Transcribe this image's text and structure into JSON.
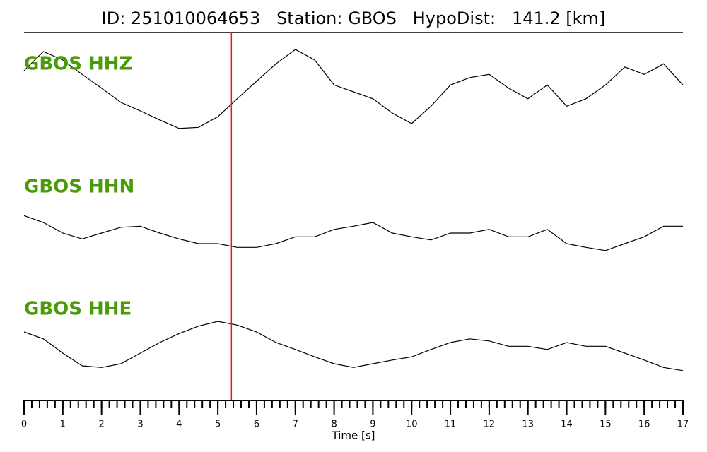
{
  "chart_data": {
    "type": "line",
    "title": "ID: 251010064653   Station: GBOS   HypoDist:   141.2 [km]",
    "xlabel": "Time [s]",
    "x": [
      0,
      0.5,
      1,
      1.5,
      2,
      2.5,
      3,
      3.5,
      4,
      4.5,
      5,
      5.5,
      6,
      6.5,
      7,
      7.5,
      8,
      8.5,
      9,
      9.5,
      10,
      10.5,
      11,
      11.5,
      12,
      12.5,
      13,
      13.5,
      14,
      14.5,
      15,
      15.5,
      16,
      16.5,
      17
    ],
    "xlim": [
      0,
      17
    ],
    "xticks": [
      0,
      1,
      2,
      3,
      4,
      5,
      6,
      7,
      8,
      9,
      10,
      11,
      12,
      13,
      14,
      15,
      16,
      17
    ],
    "xminor": 0.2,
    "ylim": [
      -1,
      1
    ],
    "pick_time": 5.35,
    "pick_color": "#e02020",
    "label_color": "#4a9a0a",
    "series": [
      {
        "name": "GBOS HHZ",
        "color": "#000000",
        "values": [
          0.4,
          0.76,
          0.6,
          0.33,
          0.07,
          -0.2,
          -0.36,
          -0.53,
          -0.69,
          -0.67,
          -0.47,
          -0.13,
          0.2,
          0.53,
          0.8,
          0.6,
          0.13,
          0,
          -0.13,
          -0.4,
          -0.6,
          -0.27,
          0.13,
          0.27,
          0.33,
          0.07,
          -0.13,
          0.13,
          -0.27,
          -0.13,
          0.13,
          0.47,
          0.33,
          0.53,
          0.13
        ]
      },
      {
        "name": "GBOS HHN",
        "color": "#000000",
        "values": [
          0.33,
          0.2,
          0,
          -0.11,
          0,
          0.11,
          0.13,
          0,
          -0.11,
          -0.2,
          -0.2,
          -0.27,
          -0.27,
          -0.2,
          -0.07,
          -0.07,
          0.07,
          0.13,
          0.2,
          0,
          -0.07,
          -0.13,
          0,
          0,
          0.07,
          -0.07,
          -0.07,
          0.07,
          -0.2,
          -0.27,
          -0.33,
          -0.2,
          -0.07,
          0.13,
          0.13
        ]
      },
      {
        "name": "GBOS HHE",
        "color": "#000000",
        "values": [
          0.4,
          0.27,
          0,
          -0.24,
          -0.27,
          -0.2,
          0,
          0.2,
          0.37,
          0.51,
          0.6,
          0.53,
          0.4,
          0.2,
          0.07,
          -0.07,
          -0.2,
          -0.27,
          -0.2,
          -0.13,
          -0.07,
          0.07,
          0.2,
          0.27,
          0.23,
          0.13,
          0.13,
          0.07,
          0.2,
          0.13,
          0.13,
          0,
          -0.13,
          -0.27,
          -0.33
        ]
      }
    ]
  }
}
